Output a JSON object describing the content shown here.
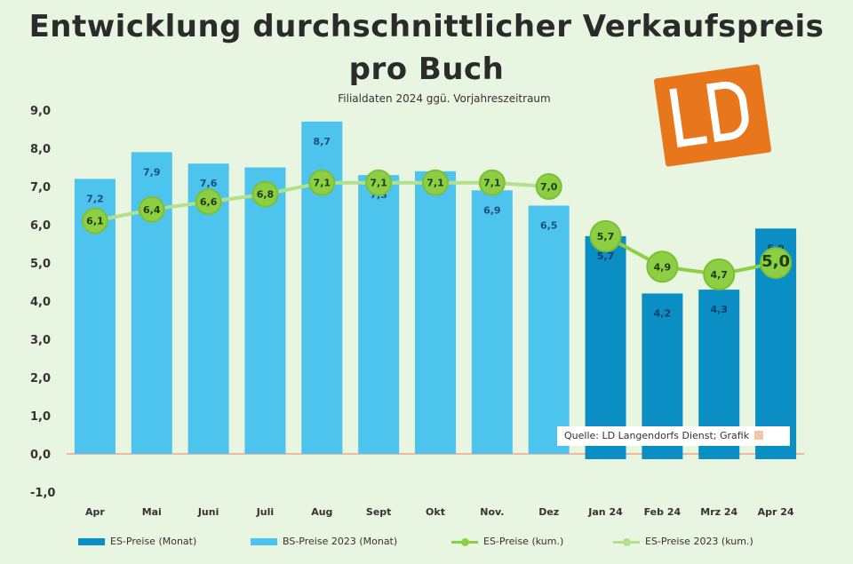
{
  "title_line1": "Entwicklung durchschnittlicher Verkaufspreis",
  "title_line2": "pro Buch",
  "subtitle": "Filialdaten 2024 ggü. Vorjahreszeitraum",
  "source_note": "Quelle: LD Langendorfs Dienst; Grafik",
  "legend": [
    "ES-Preise (Monat)",
    "BS-Preise 2023 (Monat)",
    "ES-Preise (kum.)",
    "ES-Preise 2023 (kum.)"
  ],
  "colors": {
    "bar_2023": "#4cc4ee",
    "bar_2024": "#0b8ec4",
    "line_2024": "#8ccf44",
    "line_2023": "#b3e08a",
    "background": "#e8f5e0",
    "logo": "#e8761c"
  },
  "icons": {
    "logo": "ld-logo"
  },
  "chart_data": {
    "type": "bar",
    "categories": [
      "Apr",
      "Mai",
      "Juni",
      "Juli",
      "Aug",
      "Sept",
      "Okt",
      "Nov.",
      "Dez",
      "Jan 24",
      "Feb 24",
      "Mrz 24",
      "Apr 24"
    ],
    "ylim": [
      -1.0,
      9.0
    ],
    "yticks": [
      "-1,0",
      "0,0",
      "1,0",
      "2,0",
      "3,0",
      "4,0",
      "5,0",
      "6,0",
      "7,0",
      "8,0",
      "9,0"
    ],
    "series": [
      {
        "name": "BS-Preise 2023 (Monat)",
        "kind": "bar",
        "values": [
          7.2,
          7.9,
          7.6,
          7.5,
          8.7,
          7.3,
          7.4,
          6.9,
          6.5,
          null,
          null,
          null,
          null
        ],
        "labels": [
          "7,2",
          "7,9",
          "7,6",
          "7,5",
          "8,7",
          "7,3",
          "7,4",
          "6,9",
          "6,5",
          "",
          "",
          "",
          ""
        ]
      },
      {
        "name": "ES-Preise (Monat)",
        "kind": "bar",
        "values": [
          null,
          null,
          null,
          null,
          null,
          null,
          null,
          null,
          null,
          5.7,
          4.2,
          4.3,
          5.9
        ],
        "labels": [
          "",
          "",
          "",
          "",
          "",
          "",
          "",
          "",
          "",
          "5,7",
          "4,2",
          "4,3",
          "5,9"
        ]
      },
      {
        "name": "ES-Preise 2023 (kum.)",
        "kind": "line",
        "values": [
          6.1,
          6.4,
          6.6,
          6.8,
          7.1,
          7.1,
          7.1,
          7.1,
          7.0,
          null,
          null,
          null,
          null
        ],
        "labels": [
          "6,1",
          "6,4",
          "6,6",
          "6,8",
          "7,1",
          "7,1",
          "7,1",
          "7,1",
          "7,0",
          "",
          "",
          "",
          ""
        ]
      },
      {
        "name": "ES-Preise (kum.)",
        "kind": "line",
        "values": [
          null,
          null,
          null,
          null,
          null,
          null,
          null,
          null,
          null,
          5.7,
          4.9,
          4.7,
          5.0
        ],
        "labels": [
          "",
          "",
          "",
          "",
          "",
          "",
          "",
          "",
          "",
          "5,7",
          "4,9",
          "4,7",
          "5,0"
        ]
      }
    ],
    "grid": false,
    "legend_position": "bottom"
  }
}
